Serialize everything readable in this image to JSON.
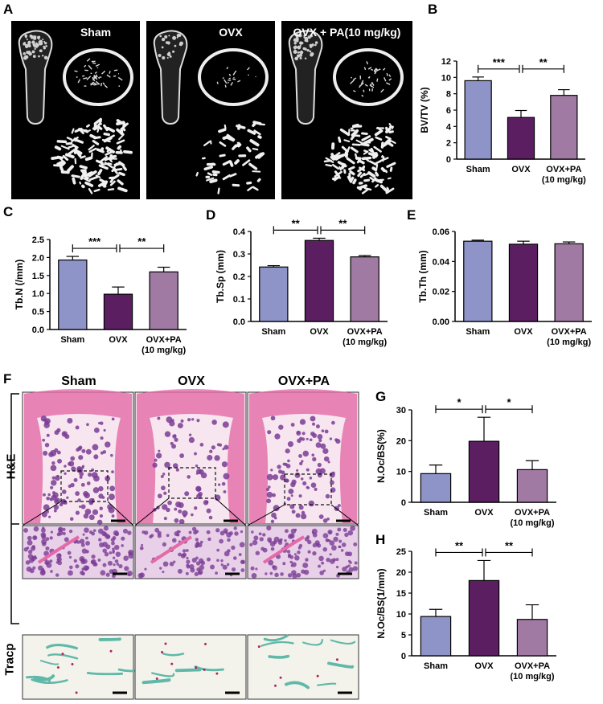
{
  "panels": {
    "A": "A",
    "B": "B",
    "C": "C",
    "D": "D",
    "E": "E",
    "F": "F",
    "G": "G",
    "H": "H"
  },
  "microct": {
    "groups": [
      "Sham",
      "OVX",
      "OVX + PA(10 mg/kg)"
    ]
  },
  "histology": {
    "groups": [
      "Sham",
      "OVX",
      "OVX+PA"
    ],
    "row_labels": [
      "H&E",
      "Tracp"
    ]
  },
  "colors": {
    "sham": "#8e93c8",
    "ovx": "#5b1f61",
    "pa": "#a07aa3",
    "he_pink": "#e46aa8",
    "he_purple": "#7a3c95",
    "tracp_bg": "#f3f3ec",
    "tracp_green": "#5fb8a8"
  },
  "chart_data": [
    {
      "id": "B",
      "type": "bar",
      "categories": [
        "Sham",
        "OVX",
        "OVX+PA\n(10 mg/kg)"
      ],
      "values": [
        9.6,
        5.1,
        7.8
      ],
      "errors": [
        0.45,
        0.85,
        0.7
      ],
      "ylabel": "BV/TV (%)",
      "ylim": [
        0,
        12
      ],
      "yticks": [
        "0",
        "2",
        "4",
        "6",
        "8",
        "10",
        "12"
      ],
      "significance": [
        {
          "from": 0,
          "to": 1,
          "label": "***"
        },
        {
          "from": 1,
          "to": 2,
          "label": "**"
        }
      ]
    },
    {
      "id": "C",
      "type": "bar",
      "categories": [
        "Sham",
        "OVX",
        "OVX+PA\n(10 mg/kg)"
      ],
      "values": [
        1.93,
        0.98,
        1.6
      ],
      "errors": [
        0.1,
        0.2,
        0.13
      ],
      "ylabel": "Tb.N (/mm)",
      "ylim": [
        0,
        2.5
      ],
      "yticks": [
        "0.0",
        "0.5",
        "1.0",
        "1.5",
        "2.0",
        "2.5"
      ],
      "significance": [
        {
          "from": 0,
          "to": 1,
          "label": "***"
        },
        {
          "from": 1,
          "to": 2,
          "label": "**"
        }
      ]
    },
    {
      "id": "D",
      "type": "bar",
      "categories": [
        "Sham",
        "OVX",
        "OVX+PA\n(10 mg/kg)"
      ],
      "values": [
        0.242,
        0.36,
        0.287
      ],
      "errors": [
        0.006,
        0.01,
        0.006
      ],
      "ylabel": "Tb.Sp (mm)",
      "ylim": [
        0,
        0.4
      ],
      "yticks": [
        "0.0",
        "0.1",
        "0.2",
        "0.3",
        "0.4"
      ],
      "significance": [
        {
          "from": 0,
          "to": 1,
          "label": "**"
        },
        {
          "from": 1,
          "to": 2,
          "label": "**"
        }
      ]
    },
    {
      "id": "E",
      "type": "bar",
      "categories": [
        "Sham",
        "OVX",
        "OVX+PA\n(10 mg/kg)"
      ],
      "values": [
        0.0535,
        0.0515,
        0.0518
      ],
      "errors": [
        0.0007,
        0.002,
        0.0012
      ],
      "ylabel": "Tb.Th (mm)",
      "ylim": [
        0,
        0.06
      ],
      "yticks": [
        "0.00",
        "0.02",
        "0.04",
        "0.06"
      ],
      "significance": []
    },
    {
      "id": "G",
      "type": "bar",
      "categories": [
        "Sham",
        "OVX",
        "OVX+PA\n(10 mg/kg)"
      ],
      "values": [
        9.3,
        19.8,
        10.6
      ],
      "errors": [
        2.8,
        7.8,
        2.9
      ],
      "ylabel": "N.Oc/BS(%)",
      "ylim": [
        0,
        30
      ],
      "yticks": [
        "0",
        "10",
        "20",
        "30"
      ],
      "significance": [
        {
          "from": 0,
          "to": 1,
          "label": "*"
        },
        {
          "from": 1,
          "to": 2,
          "label": "*"
        }
      ]
    },
    {
      "id": "H",
      "type": "bar",
      "categories": [
        "Sham",
        "OVX",
        "OVX+PA\n(10 mg/kg)"
      ],
      "values": [
        9.4,
        18.0,
        8.7
      ],
      "errors": [
        1.7,
        4.8,
        3.5
      ],
      "ylabel": "N.Oc/BS(1/mm)",
      "ylim": [
        0,
        25
      ],
      "yticks": [
        "0",
        "5",
        "10",
        "15",
        "20",
        "25"
      ],
      "significance": [
        {
          "from": 0,
          "to": 1,
          "label": "**"
        },
        {
          "from": 1,
          "to": 2,
          "label": "**"
        }
      ]
    }
  ]
}
